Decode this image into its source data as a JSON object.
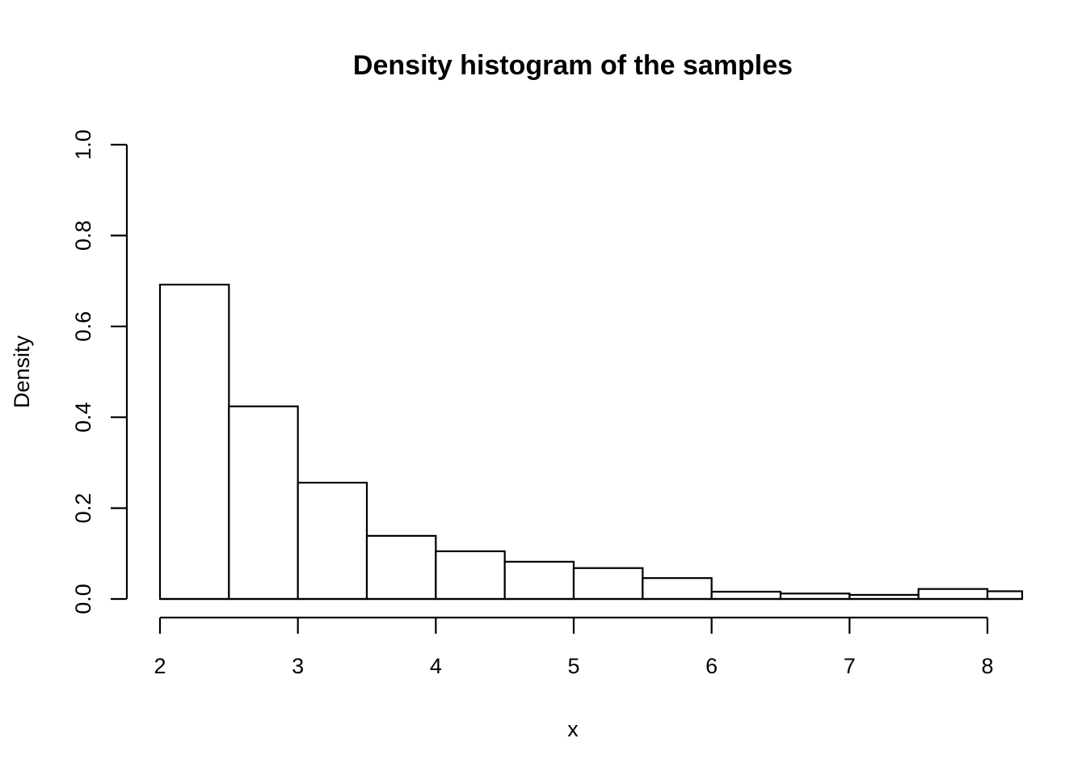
{
  "chart_data": {
    "type": "bar",
    "title": "Density histogram of the samples",
    "xlabel": "x",
    "ylabel": "Density",
    "xlim": [
      1.75,
      8.25
    ],
    "ylim": [
      0,
      1.0
    ],
    "x_ticks": [
      2,
      3,
      4,
      5,
      6,
      7,
      8
    ],
    "y_ticks": [
      "0.0",
      "0.2",
      "0.4",
      "0.6",
      "0.8",
      "1.0"
    ],
    "grid": false,
    "bins": [
      {
        "start": 2.0,
        "end": 2.5,
        "density": 0.692
      },
      {
        "start": 2.5,
        "end": 3.0,
        "density": 0.424
      },
      {
        "start": 3.0,
        "end": 3.5,
        "density": 0.256
      },
      {
        "start": 3.5,
        "end": 4.0,
        "density": 0.139
      },
      {
        "start": 4.0,
        "end": 4.5,
        "density": 0.105
      },
      {
        "start": 4.5,
        "end": 5.0,
        "density": 0.082
      },
      {
        "start": 5.0,
        "end": 5.5,
        "density": 0.068
      },
      {
        "start": 5.5,
        "end": 6.0,
        "density": 0.046
      },
      {
        "start": 6.0,
        "end": 6.5,
        "density": 0.016
      },
      {
        "start": 6.5,
        "end": 7.0,
        "density": 0.012
      },
      {
        "start": 7.0,
        "end": 7.5,
        "density": 0.009
      },
      {
        "start": 7.5,
        "end": 8.0,
        "density": 0.022
      },
      {
        "start": 8.0,
        "end": 8.5,
        "density": 0.017
      }
    ]
  }
}
